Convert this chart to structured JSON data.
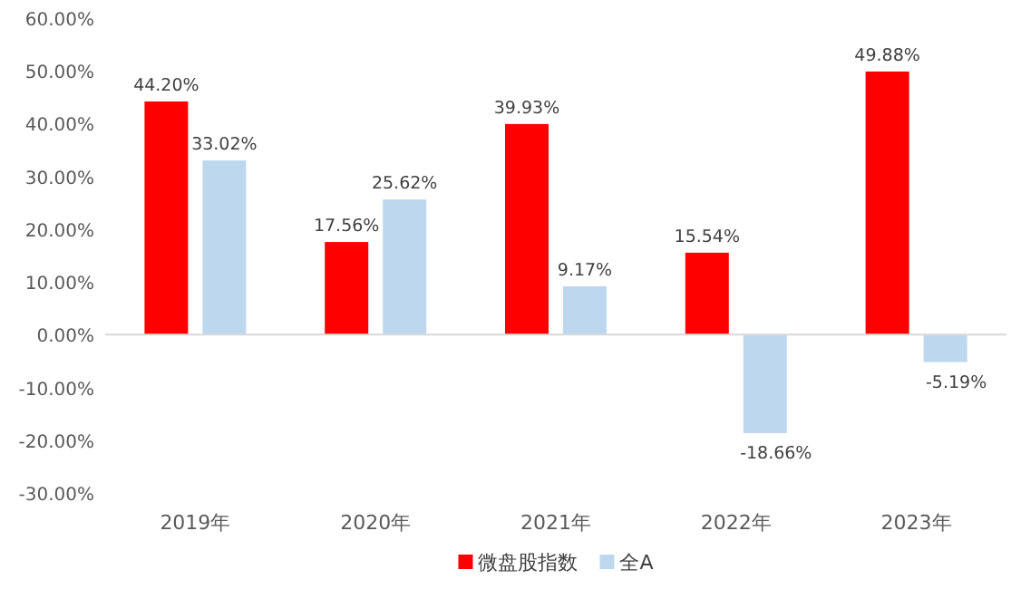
{
  "chart_data": {
    "type": "bar",
    "categories": [
      "2019年",
      "2020年",
      "2021年",
      "2022年",
      "2023年"
    ],
    "series": [
      {
        "name": "微盘股指数",
        "color": "#ff0000",
        "values": [
          44.2,
          17.56,
          39.93,
          15.54,
          49.88
        ],
        "value_labels": [
          "44.20%",
          "17.56%",
          "39.93%",
          "15.54%",
          "49.88%"
        ]
      },
      {
        "name": "全A",
        "color": "#bdd7ee",
        "values": [
          33.02,
          25.62,
          9.17,
          -18.66,
          -5.19
        ],
        "value_labels": [
          "33.02%",
          "25.62%",
          "9.17%",
          "-18.66%",
          "-5.19%"
        ]
      }
    ],
    "ylim": [
      -30,
      60
    ],
    "yticks": [
      {
        "value": -30,
        "label": "-30.00%"
      },
      {
        "value": -20,
        "label": "-20.00%"
      },
      {
        "value": -10,
        "label": "-10.00%"
      },
      {
        "value": 0,
        "label": "0.00%"
      },
      {
        "value": 10,
        "label": "10.00%"
      },
      {
        "value": 20,
        "label": "20.00%"
      },
      {
        "value": 30,
        "label": "30.00%"
      },
      {
        "value": 40,
        "label": "40.00%"
      },
      {
        "value": 50,
        "label": "50.00%"
      },
      {
        "value": 60,
        "label": "60.00%"
      }
    ],
    "legend": "bottom"
  }
}
